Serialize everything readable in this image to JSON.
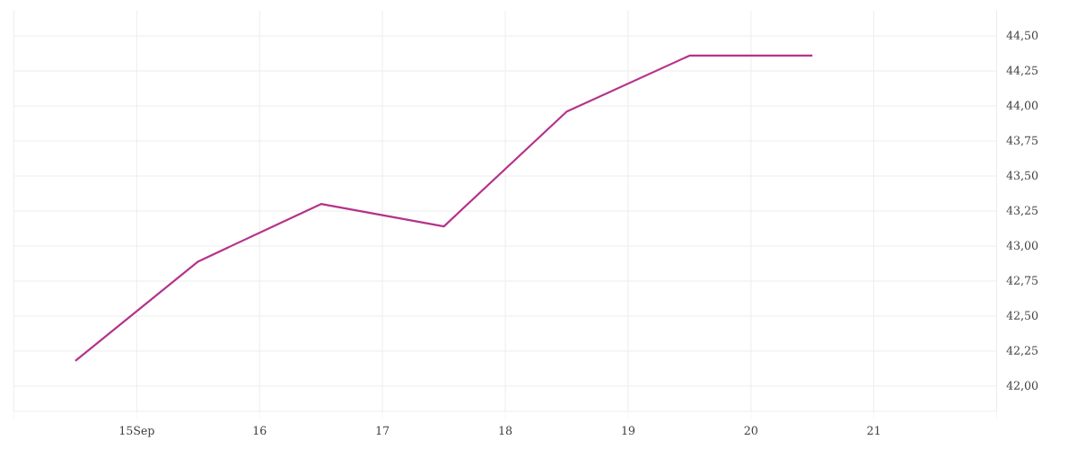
{
  "chart_data": {
    "type": "line",
    "x": [
      14.5,
      15.5,
      16.5,
      17.5,
      18.5,
      19.5,
      20.5
    ],
    "series": [
      {
        "color": "#b5338a",
        "values": [
          42.18,
          42.89,
          43.3,
          43.14,
          43.96,
          44.36,
          44.36
        ]
      }
    ],
    "xlim": [
      14,
      22
    ],
    "xticks": [
      {
        "value": 14,
        "label": null
      },
      {
        "value": 15,
        "label": "15Sep"
      },
      16,
      17,
      18,
      19,
      20,
      21,
      {
        "value": 22,
        "label": null
      }
    ],
    "ylim": [
      41.82,
      44.68
    ],
    "yticks": [
      {
        "value": 42,
        "label": "42,00"
      },
      {
        "value": 42.25,
        "label": "42,25"
      },
      {
        "value": 42.5,
        "label": "42,50"
      },
      {
        "value": 42.75,
        "label": "42,75"
      },
      {
        "value": 43,
        "label": "43,00"
      },
      {
        "value": 43.25,
        "label": "43,25"
      },
      {
        "value": 43.5,
        "label": "43,50"
      },
      {
        "value": 43.75,
        "label": "43,75"
      },
      {
        "value": 44,
        "label": "44,00"
      },
      {
        "value": 44.25,
        "label": "44,25"
      },
      {
        "value": 44.5,
        "label": "44,50"
      }
    ],
    "grid": true,
    "marker": "none",
    "line_style": "solid"
  }
}
